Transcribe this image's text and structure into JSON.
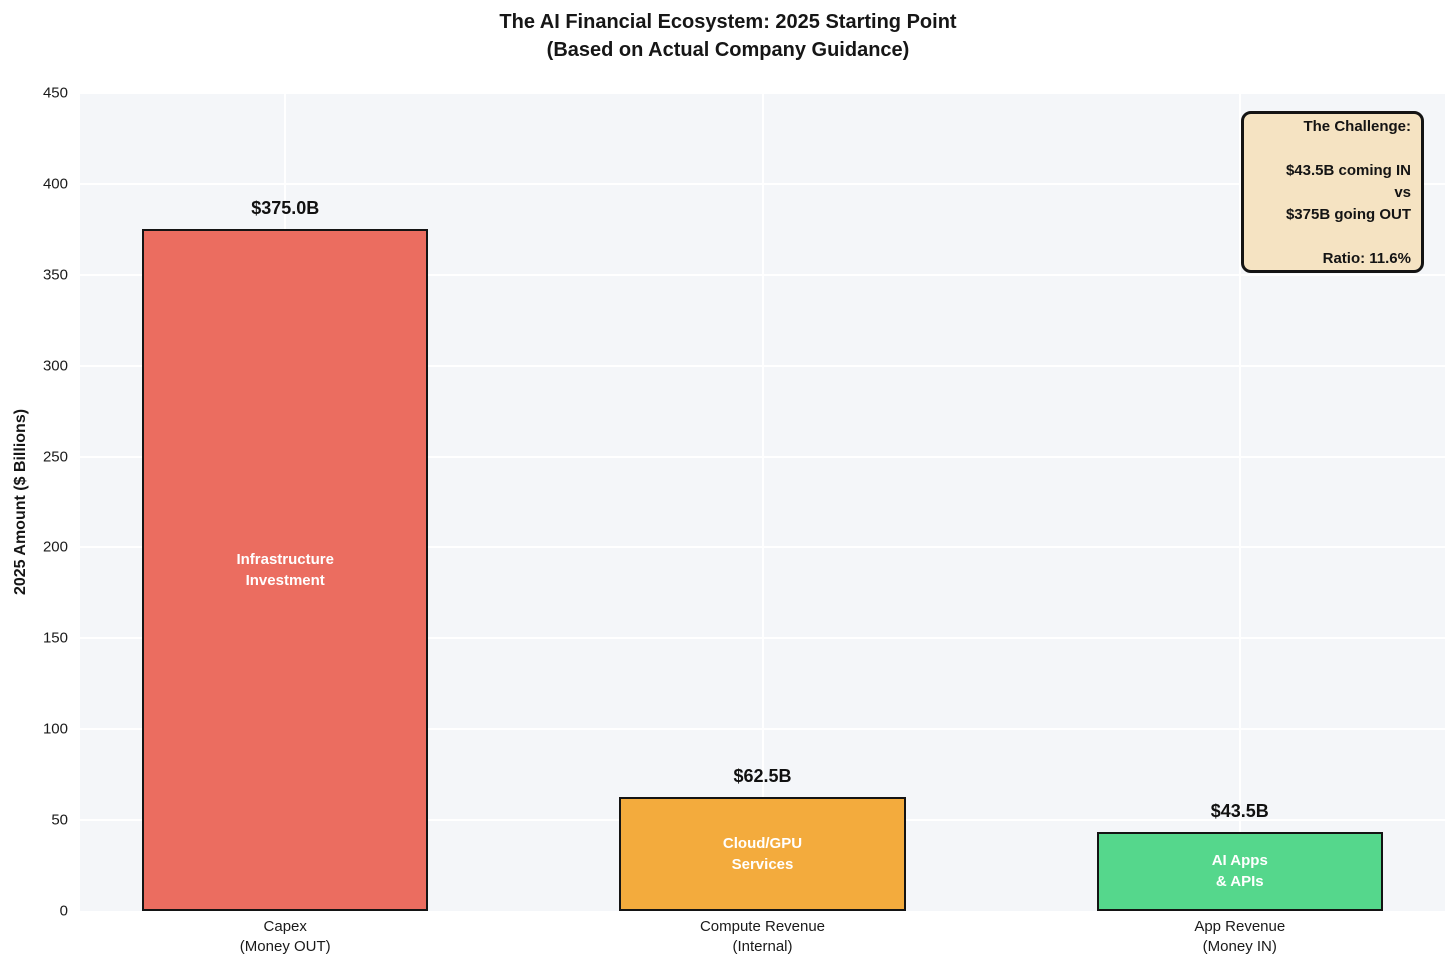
{
  "title": "The AI Financial Ecosystem: 2025 Starting Point\n(Based on Actual Company Guidance)",
  "chart_data": {
    "type": "bar",
    "title": "The AI Financial Ecosystem: 2025 Starting Point (Based on Actual Company Guidance)",
    "categories": [
      "Capex\n(Money OUT)",
      "Compute Revenue\n(Internal)",
      "App Revenue\n(Money IN)"
    ],
    "values": [
      375.0,
      62.5,
      43.5
    ],
    "value_labels": [
      "$375.0B",
      "$62.5B",
      "$43.5B"
    ],
    "bar_inner_labels": [
      "Infrastructure\nInvestment",
      "Cloud/GPU\nServices",
      "AI Apps\n& APIs"
    ],
    "bar_colors": [
      "#eb6d60",
      "#f3ab3d",
      "#55d78c"
    ],
    "bar_edge_color": "#141414",
    "xlabel": "",
    "ylabel": "2025 Amount ($ Billions)",
    "ylim": [
      0,
      450
    ],
    "yticks": [
      0,
      50,
      100,
      150,
      200,
      250,
      300,
      350,
      400,
      450
    ],
    "grid": "on (white gridlines over light panel)",
    "plot_background": "#f4f6f9",
    "legend": "none",
    "annotation": {
      "text": "The Challenge:\n\n$43.5B coming IN\nvs\n$375B going OUT\n\nRatio: 11.6%",
      "background": "#f5e3c2",
      "border_color": "#141414",
      "position": "top-right"
    }
  }
}
